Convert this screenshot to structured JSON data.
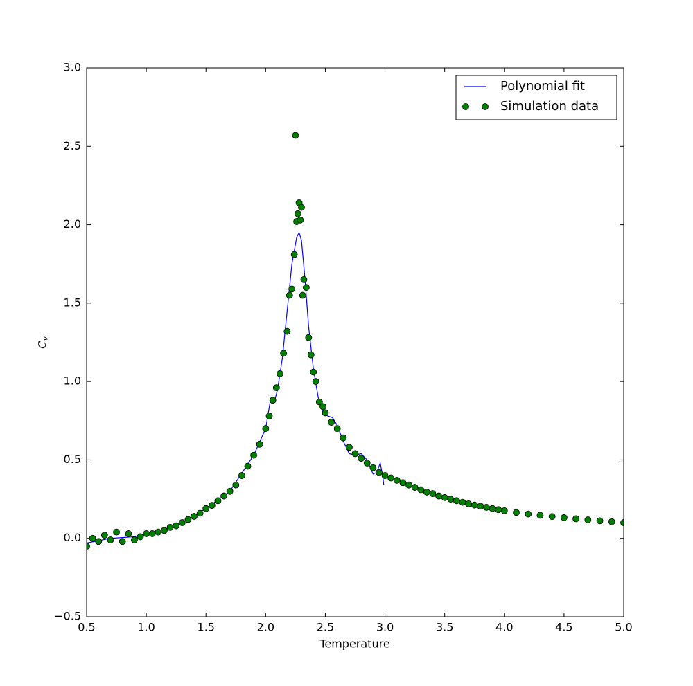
{
  "chart_data": {
    "type": "scatter",
    "xlabel": "Temperature",
    "ylabel": {
      "base": "C",
      "sub": "v"
    },
    "xlim": [
      0.5,
      5.0
    ],
    "ylim": [
      -0.5,
      3.0
    ],
    "xticks": [
      0.5,
      {
        "value": 1,
        "label": "1.0"
      },
      1.5,
      {
        "value": 2,
        "label": "2.0"
      },
      2.5,
      {
        "value": 3,
        "label": "3.0"
      },
      3.5,
      {
        "value": 4,
        "label": "4.0"
      },
      4.5,
      {
        "value": 5,
        "label": "5.0"
      }
    ],
    "yticks": [
      {
        "value": -0.5,
        "label": "−0.5"
      },
      {
        "value": 0,
        "label": "0.0"
      },
      0.5,
      {
        "value": 1,
        "label": "1.0"
      },
      1.5,
      {
        "value": 2,
        "label": "2.0"
      },
      2.5,
      {
        "value": 3,
        "label": "3.0"
      }
    ],
    "legend": "upper right",
    "series": [
      {
        "name": "Polynomial fit",
        "kind": "line",
        "color": "#0000ff",
        "x": [
          0.5,
          0.7,
          0.9,
          1.1,
          1.3,
          1.5,
          1.7,
          1.9,
          2.0,
          2.04,
          2.07,
          2.1,
          2.14,
          2.18,
          2.22,
          2.26,
          2.28,
          2.3,
          2.33,
          2.36,
          2.4,
          2.44,
          2.48,
          2.52,
          2.56,
          2.6,
          2.65,
          2.7,
          2.75,
          2.8,
          2.85,
          2.9,
          2.93,
          2.96,
          2.98,
          2.99
        ],
        "values": [
          -0.03,
          0.0,
          0.01,
          0.04,
          0.1,
          0.19,
          0.3,
          0.53,
          0.7,
          0.88,
          0.86,
          0.95,
          1.15,
          1.45,
          1.75,
          1.92,
          1.95,
          1.9,
          1.65,
          1.35,
          1.08,
          0.9,
          0.8,
          0.78,
          0.77,
          0.72,
          0.62,
          0.54,
          0.53,
          0.54,
          0.5,
          0.41,
          0.42,
          0.48,
          0.4,
          0.34
        ]
      },
      {
        "name": "Simulation data",
        "kind": "points",
        "color": "#008000",
        "x": [
          0.5,
          0.55,
          0.6,
          0.65,
          0.7,
          0.75,
          0.8,
          0.85,
          0.9,
          0.95,
          1.0,
          1.05,
          1.1,
          1.15,
          1.2,
          1.25,
          1.3,
          1.35,
          1.4,
          1.45,
          1.5,
          1.55,
          1.6,
          1.65,
          1.7,
          1.75,
          1.8,
          1.85,
          1.9,
          1.95,
          2.0,
          2.03,
          2.06,
          2.09,
          2.12,
          2.15,
          2.18,
          2.2,
          2.22,
          2.24,
          2.25,
          2.26,
          2.27,
          2.28,
          2.29,
          2.3,
          2.31,
          2.32,
          2.34,
          2.36,
          2.38,
          2.4,
          2.42,
          2.45,
          2.48,
          2.5,
          2.55,
          2.6,
          2.65,
          2.7,
          2.75,
          2.8,
          2.85,
          2.9,
          2.95,
          3.0,
          3.05,
          3.1,
          3.15,
          3.2,
          3.25,
          3.3,
          3.35,
          3.4,
          3.45,
          3.5,
          3.55,
          3.6,
          3.65,
          3.7,
          3.75,
          3.8,
          3.85,
          3.9,
          3.95,
          4.0,
          4.1,
          4.2,
          4.3,
          4.4,
          4.5,
          4.6,
          4.7,
          4.8,
          4.9,
          5.0
        ],
        "values": [
          -0.05,
          0.0,
          -0.02,
          0.02,
          -0.01,
          0.04,
          -0.02,
          0.03,
          -0.01,
          0.01,
          0.03,
          0.03,
          0.04,
          0.05,
          0.07,
          0.08,
          0.1,
          0.12,
          0.14,
          0.16,
          0.19,
          0.21,
          0.24,
          0.27,
          0.3,
          0.34,
          0.4,
          0.46,
          0.53,
          0.6,
          0.7,
          0.78,
          0.88,
          0.96,
          1.05,
          1.18,
          1.32,
          1.55,
          1.59,
          1.81,
          2.57,
          2.02,
          2.07,
          2.14,
          2.03,
          2.11,
          1.55,
          1.65,
          1.6,
          1.28,
          1.17,
          1.06,
          1.0,
          0.87,
          0.84,
          0.8,
          0.74,
          0.7,
          0.64,
          0.58,
          0.54,
          0.51,
          0.48,
          0.45,
          0.42,
          0.4,
          0.385,
          0.37,
          0.355,
          0.34,
          0.325,
          0.31,
          0.295,
          0.285,
          0.27,
          0.26,
          0.25,
          0.24,
          0.23,
          0.22,
          0.212,
          0.205,
          0.198,
          0.19,
          0.183,
          0.176,
          0.165,
          0.155,
          0.147,
          0.139,
          0.132,
          0.125,
          0.118,
          0.112,
          0.106,
          0.1
        ]
      }
    ]
  }
}
